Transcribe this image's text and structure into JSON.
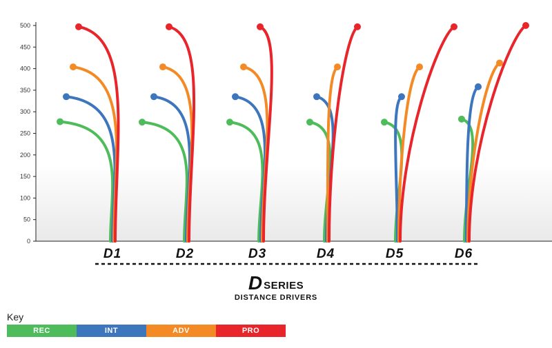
{
  "chart_data": {
    "type": "line",
    "y_ticks": [
      0,
      50,
      100,
      150,
      200,
      250,
      300,
      350,
      400,
      450,
      500
    ],
    "ylim": [
      0,
      500
    ],
    "categories": [
      "D1",
      "D2",
      "D3",
      "D4",
      "D5",
      "D6"
    ],
    "highlighted_category": "D6",
    "series": [
      {
        "name": "REC",
        "color": "#4ebc5b",
        "values": [
          277,
          276,
          276,
          276,
          276,
          283
        ]
      },
      {
        "name": "INT",
        "color": "#3d76bd",
        "values": [
          335,
          335,
          335,
          335,
          335,
          358
        ]
      },
      {
        "name": "ADV",
        "color": "#f48a25",
        "values": [
          404,
          404,
          404,
          404,
          404,
          413
        ]
      },
      {
        "name": "PRO",
        "color": "#e8252b",
        "values": [
          497,
          497,
          497,
          497,
          497,
          500
        ]
      }
    ]
  },
  "colors": {
    "highlight": "#6cc04a",
    "axis": "#222222",
    "text": "#111111"
  },
  "brand": {
    "logo_letter": "D",
    "series_word": "SERIES",
    "subtitle": "DISTANCE DRIVERS"
  },
  "key": {
    "title": "Key",
    "items": [
      {
        "label": "REC",
        "color": "#4ebc5b"
      },
      {
        "label": "INT",
        "color": "#3d76bd"
      },
      {
        "label": "ADV",
        "color": "#f48a25"
      },
      {
        "label": "PRO",
        "color": "#e8252b"
      }
    ]
  }
}
